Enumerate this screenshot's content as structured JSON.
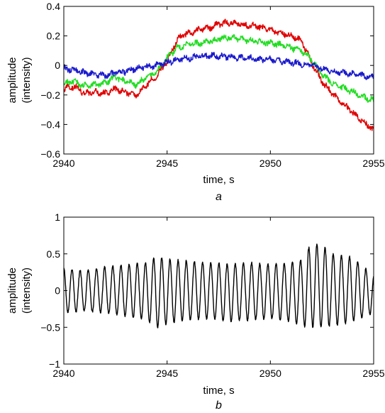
{
  "chart_data": [
    {
      "type": "line",
      "panel_label": "a",
      "xlabel": "time, s",
      "ylabel": "amplitude",
      "ylabel2": "(intensity)",
      "xlim": [
        2940,
        2955
      ],
      "ylim": [
        -0.6,
        0.4
      ],
      "xticks": [
        2940,
        2945,
        2950,
        2955
      ],
      "xtick_labels": [
        "2940",
        "2945",
        "2950",
        "2955"
      ],
      "yticks": [
        -0.6,
        -0.4,
        -0.2,
        0,
        0.2,
        0.4
      ],
      "ytick_labels": [
        "−0.6",
        "−0.4",
        "−0.2",
        "0",
        "0.2",
        "0.4"
      ],
      "series": [
        {
          "color": "#e00000",
          "x": [
            2940,
            2940.5,
            2941,
            2941.5,
            2942,
            2942.5,
            2943,
            2943.5,
            2944,
            2944.5,
            2945,
            2945.5,
            2946,
            2946.5,
            2947,
            2947.5,
            2948,
            2948.5,
            2949,
            2949.5,
            2950,
            2950.5,
            2951,
            2951.5,
            2952,
            2952.5,
            2953,
            2953.5,
            2954,
            2954.5,
            2955
          ],
          "y": [
            -0.16,
            -0.14,
            -0.19,
            -0.18,
            -0.19,
            -0.16,
            -0.18,
            -0.2,
            -0.13,
            -0.07,
            0.03,
            0.18,
            0.22,
            0.24,
            0.25,
            0.28,
            0.29,
            0.28,
            0.27,
            0.26,
            0.24,
            0.22,
            0.2,
            0.17,
            0.02,
            -0.11,
            -0.19,
            -0.26,
            -0.32,
            -0.38,
            -0.44
          ]
        },
        {
          "color": "#22dd22",
          "x": [
            2940,
            2940.5,
            2941,
            2941.5,
            2942,
            2942.5,
            2943,
            2943.5,
            2944,
            2944.5,
            2945,
            2945.5,
            2946,
            2946.5,
            2947,
            2947.5,
            2948,
            2948.5,
            2949,
            2949.5,
            2950,
            2950.5,
            2951,
            2951.5,
            2952,
            2952.5,
            2953,
            2953.5,
            2954,
            2954.5,
            2955
          ],
          "y": [
            -0.12,
            -0.11,
            -0.14,
            -0.13,
            -0.12,
            -0.08,
            -0.11,
            -0.13,
            -0.08,
            -0.04,
            0.05,
            0.12,
            0.14,
            0.15,
            0.16,
            0.18,
            0.19,
            0.18,
            0.17,
            0.16,
            0.15,
            0.14,
            0.12,
            0.1,
            0.04,
            -0.06,
            -0.12,
            -0.15,
            -0.18,
            -0.21,
            -0.24
          ]
        },
        {
          "color": "#1a1acc",
          "x": [
            2940,
            2940.5,
            2941,
            2941.5,
            2942,
            2942.5,
            2943,
            2943.5,
            2944,
            2944.5,
            2945,
            2945.5,
            2946,
            2946.5,
            2947,
            2947.5,
            2948,
            2948.5,
            2949,
            2949.5,
            2950,
            2950.5,
            2951,
            2951.5,
            2952,
            2952.5,
            2953,
            2953.5,
            2954,
            2954.5,
            2955
          ],
          "y": [
            -0.02,
            -0.03,
            -0.05,
            -0.06,
            -0.07,
            -0.05,
            -0.04,
            -0.02,
            -0.01,
            0.0,
            0.02,
            0.04,
            0.05,
            0.06,
            0.07,
            0.06,
            0.06,
            0.05,
            0.05,
            0.04,
            0.04,
            0.03,
            0.02,
            0.01,
            0.0,
            -0.02,
            -0.04,
            -0.05,
            -0.06,
            -0.07,
            -0.08
          ]
        }
      ]
    },
    {
      "type": "line",
      "panel_label": "b",
      "xlabel": "time, s",
      "ylabel": "amplitude",
      "ylabel2": "(intensity)",
      "xlim": [
        2940,
        2955
      ],
      "ylim": [
        -1,
        1
      ],
      "xticks": [
        2940,
        2945,
        2950,
        2955
      ],
      "xtick_labels": [
        "2940",
        "2945",
        "2950",
        "2955"
      ],
      "yticks": [
        -1,
        -0.5,
        0,
        0.5,
        1
      ],
      "ytick_labels": [
        "−1",
        "−0.5",
        "0",
        "0.5",
        "1"
      ],
      "oscillation_frequency_hz": 2.53,
      "series": [
        {
          "color": "#000000",
          "envelope_x": [
            2940,
            2941,
            2942,
            2943,
            2944,
            2944.5,
            2945,
            2946,
            2947,
            2948,
            2949,
            2950,
            2951,
            2951.5,
            2952,
            2952.5,
            2953,
            2954,
            2955
          ],
          "envelope_peak": [
            0.3,
            0.27,
            0.32,
            0.35,
            0.38,
            0.47,
            0.43,
            0.4,
            0.38,
            0.36,
            0.38,
            0.36,
            0.38,
            0.42,
            0.65,
            0.62,
            0.5,
            0.45,
            0.2
          ],
          "envelope_trough": [
            -0.3,
            -0.28,
            -0.3,
            -0.35,
            -0.4,
            -0.5,
            -0.45,
            -0.4,
            -0.38,
            -0.42,
            -0.4,
            -0.38,
            -0.42,
            -0.48,
            -0.5,
            -0.5,
            -0.48,
            -0.42,
            -0.3
          ]
        }
      ]
    }
  ]
}
